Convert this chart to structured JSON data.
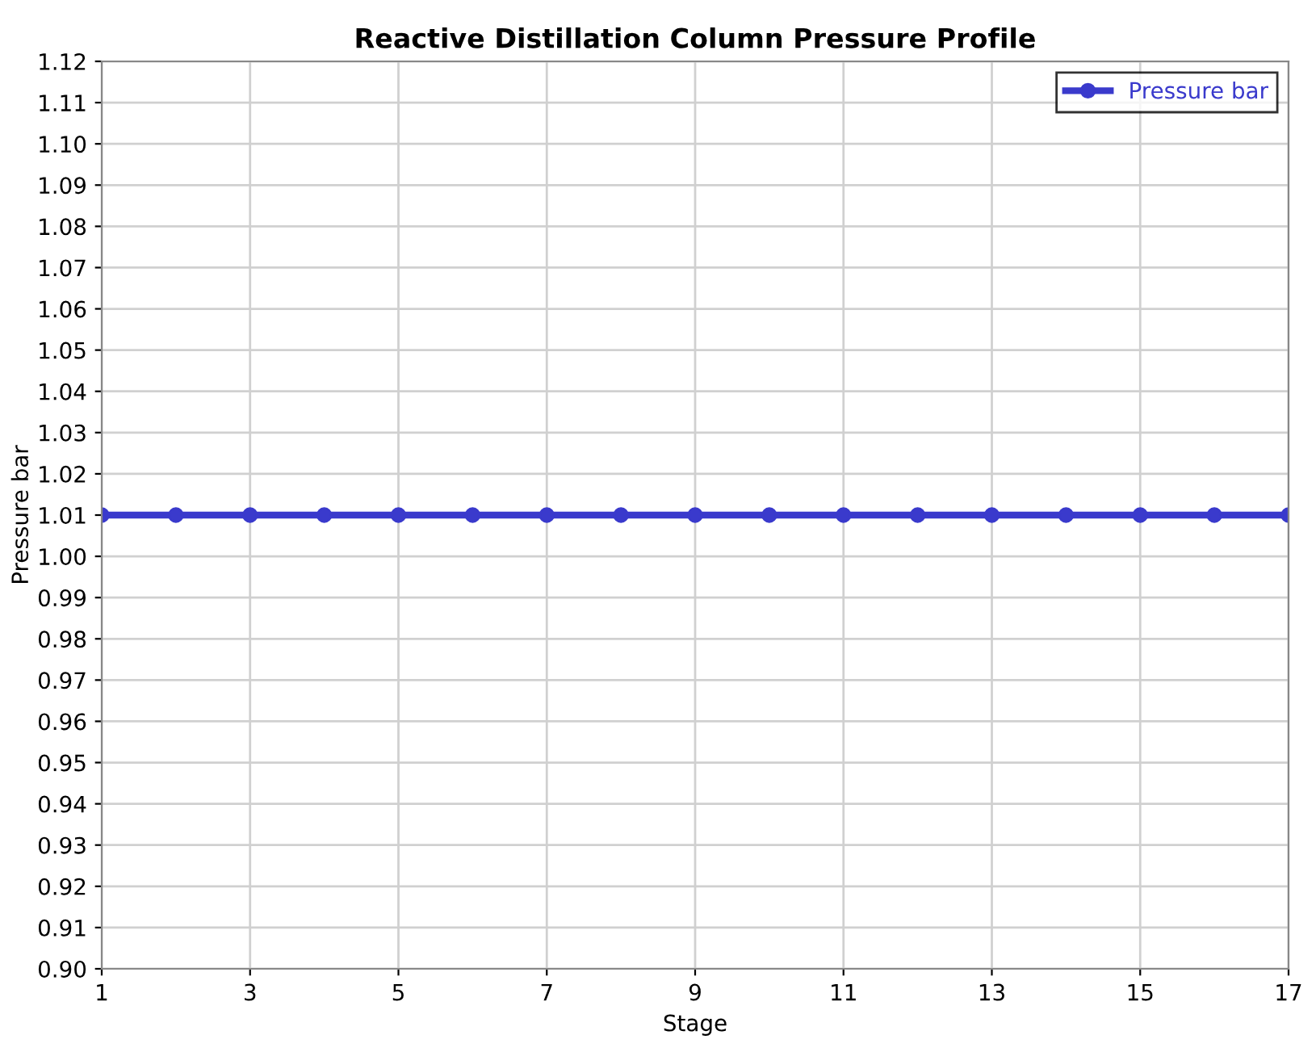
{
  "chart_data": {
    "type": "line",
    "title": "Reactive Distillation Column Pressure Profile",
    "xlabel": "Stage",
    "ylabel": "Pressure bar",
    "x": [
      1,
      2,
      3,
      4,
      5,
      6,
      7,
      8,
      9,
      10,
      11,
      12,
      13,
      14,
      15,
      16,
      17
    ],
    "series": [
      {
        "name": "Pressure bar",
        "color": "#3a3acc",
        "values": [
          1.01,
          1.01,
          1.01,
          1.01,
          1.01,
          1.01,
          1.01,
          1.01,
          1.01,
          1.01,
          1.01,
          1.01,
          1.01,
          1.01,
          1.01,
          1.01,
          1.01
        ]
      }
    ],
    "xlim": [
      1,
      17
    ],
    "xticks": [
      1,
      3,
      5,
      7,
      9,
      11,
      13,
      15,
      17
    ],
    "ylim": [
      0.9,
      1.12
    ],
    "yticks": [
      {
        "value": 0.9,
        "label": "0.90"
      },
      0.91,
      0.92,
      0.93,
      0.94,
      0.95,
      0.96,
      0.97,
      0.98,
      0.99,
      {
        "value": 1.0,
        "label": "1.00"
      },
      1.01,
      1.02,
      1.03,
      1.04,
      1.05,
      1.06,
      1.07,
      1.08,
      1.09,
      {
        "value": 1.1,
        "label": "1.10"
      },
      1.11,
      1.12
    ],
    "grid": true,
    "legend": "top right",
    "marker": "circle",
    "line_style": "solid"
  }
}
